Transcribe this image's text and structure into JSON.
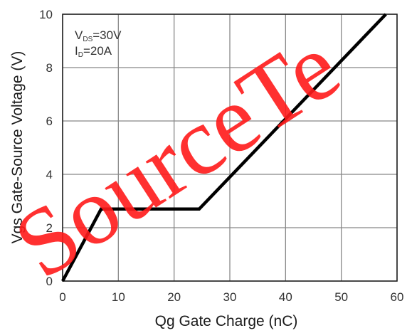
{
  "chart_data": {
    "type": "line",
    "xlabel": "Qg Gate Charge (nC)",
    "ylabel": "Vgs Gate-Source Voltage (V)",
    "xlim": [
      0,
      60
    ],
    "ylim": [
      0,
      10
    ],
    "x_ticks": [
      "0",
      "10",
      "20",
      "30",
      "40",
      "50",
      "60"
    ],
    "y_ticks": [
      "0",
      "2",
      "4",
      "6",
      "8",
      "10"
    ],
    "grid": true,
    "series": [
      {
        "x": [
          0,
          6.9,
          24.5,
          58
        ],
        "y": [
          0,
          2.7,
          2.7,
          10
        ],
        "color": "#000000"
      }
    ],
    "annotations": {
      "vds_main": "V",
      "vds_sub": "DS",
      "vds_value": "=30V",
      "id_main": "I",
      "id_sub": "D",
      "id_value": "=20A"
    }
  },
  "watermark": {
    "text": "SourceTe",
    "color": "#ff1a1a"
  }
}
